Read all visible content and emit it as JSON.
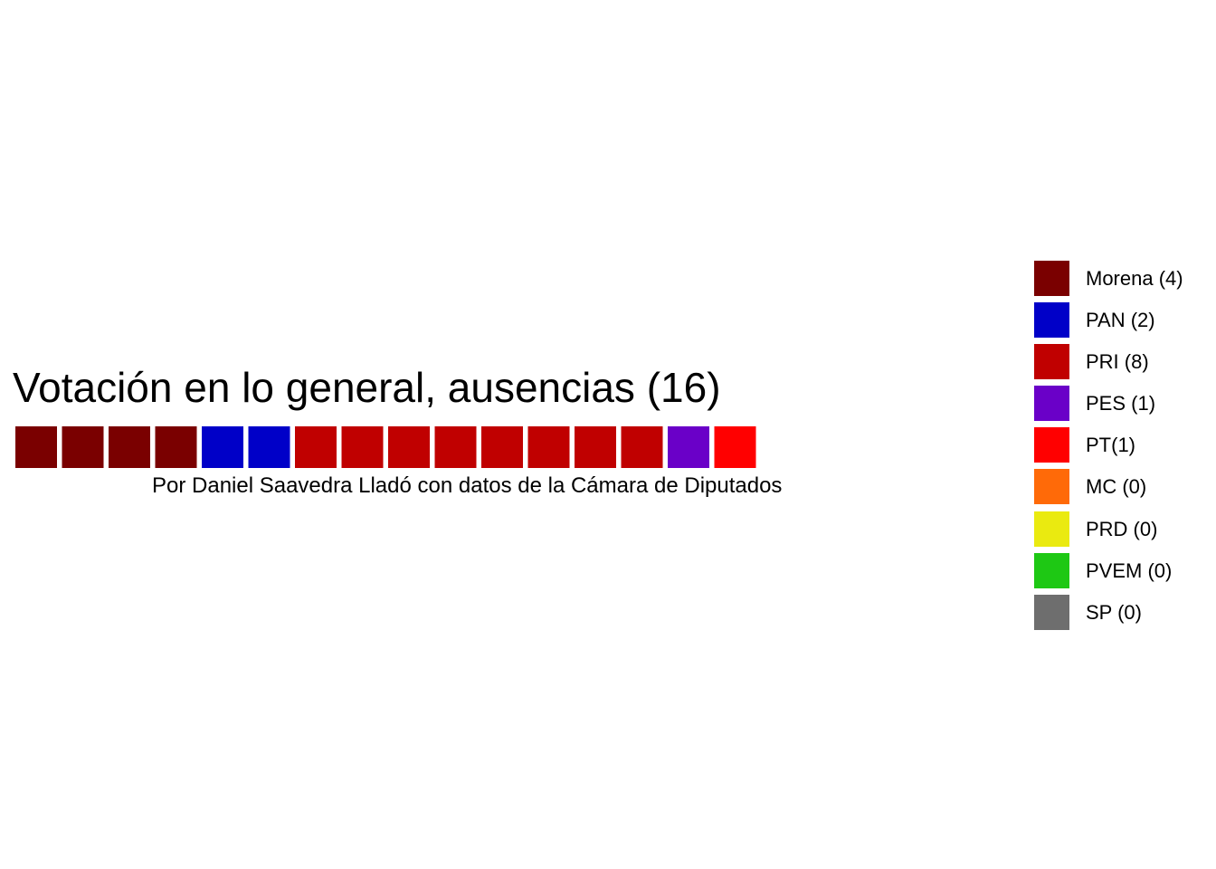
{
  "chart_data": {
    "type": "waffle",
    "title": "Votación en lo general, ausencias (16)",
    "caption": "Por Daniel Saavedra Lladó con datos de la Cámara de Diputados",
    "total": 16,
    "series": [
      {
        "name": "Morena",
        "legend_label": "Morena (4)",
        "value": 4,
        "color": "#7a0000"
      },
      {
        "name": "PAN",
        "legend_label": "PAN (2)",
        "value": 2,
        "color": "#0000c8"
      },
      {
        "name": "PRI",
        "legend_label": "PRI (8)",
        "value": 8,
        "color": "#c00000"
      },
      {
        "name": "PES",
        "legend_label": "PES (1)",
        "value": 1,
        "color": "#6a00c8"
      },
      {
        "name": "PT",
        "legend_label": "PT(1)",
        "value": 1,
        "color": "#ff0000"
      },
      {
        "name": "MC",
        "legend_label": "MC (0)",
        "value": 0,
        "color": "#ff6a08"
      },
      {
        "name": "PRD",
        "legend_label": "PRD (0)",
        "value": 0,
        "color": "#eaea10"
      },
      {
        "name": "PVEM",
        "legend_label": "PVEM (0)",
        "value": 0,
        "color": "#1ec814"
      },
      {
        "name": "SP",
        "legend_label": "SP (0)",
        "value": 0,
        "color": "#6e6e6e"
      }
    ],
    "legend_position": "right",
    "grid": false
  }
}
